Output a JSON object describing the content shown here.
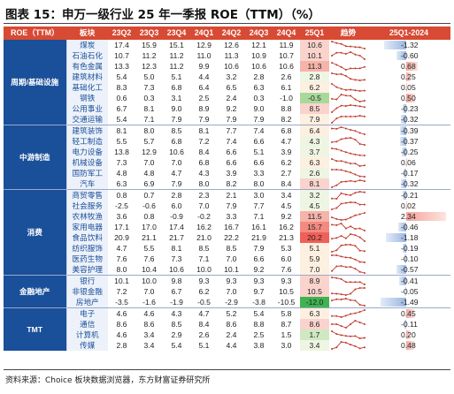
{
  "title": "图表 15：申万一级行业 25 年一季报 ROE（TTM）（%）",
  "source": "资料来源：Choice 板块数据浏览器，东方财富证券研究所",
  "colors": {
    "header_bg": "#d84a33",
    "group_bg": "#1a4f9a",
    "industry_bg": "#edf2fa",
    "trend_line": "#c0392b",
    "bar_positive": "#f3a59b",
    "bar_negative": "#9bb6e0"
  },
  "headers": [
    "ROE（TTM）",
    "板块",
    "23Q2",
    "23Q3",
    "23Q4",
    "24Q1",
    "24Q2",
    "24Q3",
    "24Q4",
    "25Q1",
    "趋势",
    "25Q1-2024"
  ],
  "groups": [
    {
      "name": "周期/基础设施",
      "rows": [
        {
          "industry": "煤炭",
          "values": [
            "17.4",
            "15.9",
            "15.1",
            "12.9",
            "12.6",
            "12.1",
            "11.9",
            "10.6"
          ],
          "change": "-1.32",
          "change_value": -1.32
        },
        {
          "industry": "石油石化",
          "values": [
            "10.7",
            "11.2",
            "11.2",
            "11.0",
            "11.3",
            "10.9",
            "10.7",
            "10.1"
          ],
          "change": "-0.60",
          "change_value": -0.6
        },
        {
          "industry": "有色金属",
          "values": [
            "13.3",
            "12.3",
            "11.2",
            "9.9",
            "10.6",
            "10.6",
            "10.6",
            "11.3"
          ],
          "change": "0.68",
          "change_value": 0.68
        },
        {
          "industry": "建筑材料",
          "values": [
            "5.4",
            "5.0",
            "5.1",
            "4.4",
            "3.2",
            "2.8",
            "2.6",
            "2.8"
          ],
          "change": "0.25",
          "change_value": 0.25
        },
        {
          "industry": "基础化工",
          "values": [
            "8.3",
            "7.3",
            "6.8",
            "6.4",
            "6.5",
            "6.3",
            "6.1",
            "6.2"
          ],
          "change": "0.05",
          "change_value": 0.05
        },
        {
          "industry": "钢铁",
          "values": [
            "0.6",
            "0.3",
            "3.1",
            "2.5",
            "2.4",
            "0.3",
            "-1.0",
            "-0.5"
          ],
          "change": "0.50",
          "change_value": 0.5
        },
        {
          "industry": "公用事业",
          "values": [
            "6.7",
            "8.1",
            "9.0",
            "8.9",
            "9.2",
            "9.0",
            "8.8",
            "8.5"
          ],
          "change": "-0.23",
          "change_value": -0.23
        },
        {
          "industry": "交通运输",
          "values": [
            "5.4",
            "7.1",
            "7.9",
            "7.9",
            "7.9",
            "7.9",
            "8.2",
            "7.9"
          ],
          "change": "-0.32",
          "change_value": -0.32
        }
      ]
    },
    {
      "name": "中游制造",
      "rows": [
        {
          "industry": "建筑装饰",
          "values": [
            "8.1",
            "8.0",
            "8.5",
            "8.1",
            "7.7",
            "7.4",
            "6.8",
            "6.4"
          ],
          "change": "-0.39",
          "change_value": -0.39
        },
        {
          "industry": "轻工制造",
          "values": [
            "5.5",
            "5.7",
            "6.8",
            "7.2",
            "7.4",
            "6.6",
            "4.7",
            "4.3"
          ],
          "change": "-0.37",
          "change_value": -0.37
        },
        {
          "industry": "电力设备",
          "values": [
            "13.8",
            "12.9",
            "10.6",
            "8.4",
            "6.6",
            "5.1",
            "3.9",
            "3.7"
          ],
          "change": "-0.25",
          "change_value": -0.25
        },
        {
          "industry": "机械设备",
          "values": [
            "7.3",
            "7.0",
            "7.0",
            "6.8",
            "6.6",
            "6.6",
            "6.2",
            "6.3"
          ],
          "change": "0.06",
          "change_value": 0.06
        },
        {
          "industry": "国防军工",
          "values": [
            "4.8",
            "4.8",
            "4.7",
            "4.3",
            "3.9",
            "3.3",
            "2.7",
            "2.6"
          ],
          "change": "-0.17",
          "change_value": -0.17
        },
        {
          "industry": "汽车",
          "values": [
            "6.3",
            "6.9",
            "7.9",
            "8.0",
            "8.2",
            "8.0",
            "8.4",
            "8.1"
          ],
          "change": "-0.32",
          "change_value": -0.32
        }
      ]
    },
    {
      "name": "消费",
      "rows": [
        {
          "industry": "商贸零售",
          "values": [
            "0.8",
            "0.7",
            "2.8",
            "2.3",
            "2.1",
            "3.0",
            "3.4",
            "3.2"
          ],
          "change": "-0.21",
          "change_value": -0.21
        },
        {
          "industry": "社会服务",
          "values": [
            "-2.5",
            "-0.6",
            "6.0",
            "7.0",
            "7.9",
            "7.7",
            "4.5",
            "4.5"
          ],
          "change": "0.02",
          "change_value": 0.02
        },
        {
          "industry": "农林牧渔",
          "values": [
            "3.6",
            "0.8",
            "-0.9",
            "-0.2",
            "3.3",
            "7.1",
            "9.2",
            "11.5"
          ],
          "change": "2.34",
          "change_value": 2.34
        },
        {
          "industry": "家用电器",
          "values": [
            "17.1",
            "17.0",
            "17.4",
            "16.2",
            "16.7",
            "16.1",
            "16.2",
            "15.7"
          ],
          "change": "-0.46",
          "change_value": -0.46
        },
        {
          "industry": "食品饮料",
          "values": [
            "20.9",
            "21.1",
            "21.7",
            "21.0",
            "22.2",
            "21.9",
            "21.3",
            "20.2"
          ],
          "change": "-1.18",
          "change_value": -1.18
        },
        {
          "industry": "纺织服饰",
          "values": [
            "4.7",
            "5.5",
            "8.1",
            "8.5",
            "8.5",
            "7.9",
            "5.3",
            "5.1"
          ],
          "change": "-0.19",
          "change_value": -0.19
        },
        {
          "industry": "医药生物",
          "values": [
            "7.6",
            "7.6",
            "7.3",
            "7.1",
            "7.0",
            "6.6",
            "6.0",
            "5.9"
          ],
          "change": "-0.10",
          "change_value": -0.1
        },
        {
          "industry": "美容护理",
          "values": [
            "8.0",
            "10.4",
            "10.6",
            "10.0",
            "10.1",
            "9.2",
            "7.6",
            "7.0"
          ],
          "change": "-0.57",
          "change_value": -0.57
        }
      ]
    },
    {
      "name": "金融地产",
      "rows": [
        {
          "industry": "银行",
          "values": [
            "10.1",
            "10.0",
            "9.8",
            "9.3",
            "9.3",
            "9.3",
            "9.3",
            "8.9"
          ],
          "change": "-0.41",
          "change_value": -0.41
        },
        {
          "industry": "非银金融",
          "values": [
            "7.2",
            "7.0",
            "6.7",
            "6.2",
            "7.0",
            "9.7",
            "10.5",
            "10.5"
          ],
          "change": "-0.05",
          "change_value": -0.05
        },
        {
          "industry": "房地产",
          "values": [
            "-3.5",
            "-1.6",
            "-1.9",
            "-0.5",
            "-2.9",
            "-3.8",
            "-10.5",
            "-12.0"
          ],
          "change": "-1.49",
          "change_value": -1.49
        }
      ]
    },
    {
      "name": "TMT",
      "rows": [
        {
          "industry": "电子",
          "values": [
            "4.6",
            "4.6",
            "4.3",
            "4.7",
            "5.2",
            "5.4",
            "5.8",
            "6.3"
          ],
          "change": "0.45",
          "change_value": 0.45
        },
        {
          "industry": "通信",
          "values": [
            "8.6",
            "8.6",
            "8.5",
            "8.4",
            "8.6",
            "8.8",
            "8.7",
            "8.6"
          ],
          "change": "-0.11",
          "change_value": -0.11
        },
        {
          "industry": "计算机",
          "values": [
            "4.6",
            "3.4",
            "2.9",
            "2.6",
            "2.4",
            "2.5",
            "1.5",
            "1.7"
          ],
          "change": "0.20",
          "change_value": 0.2
        },
        {
          "industry": "传媒",
          "values": [
            "2.8",
            "3.4",
            "5.4",
            "5.1",
            "4.4",
            "3.8",
            "3.0",
            "3.4"
          ],
          "change": "0.48",
          "change_value": 0.48
        }
      ]
    }
  ]
}
